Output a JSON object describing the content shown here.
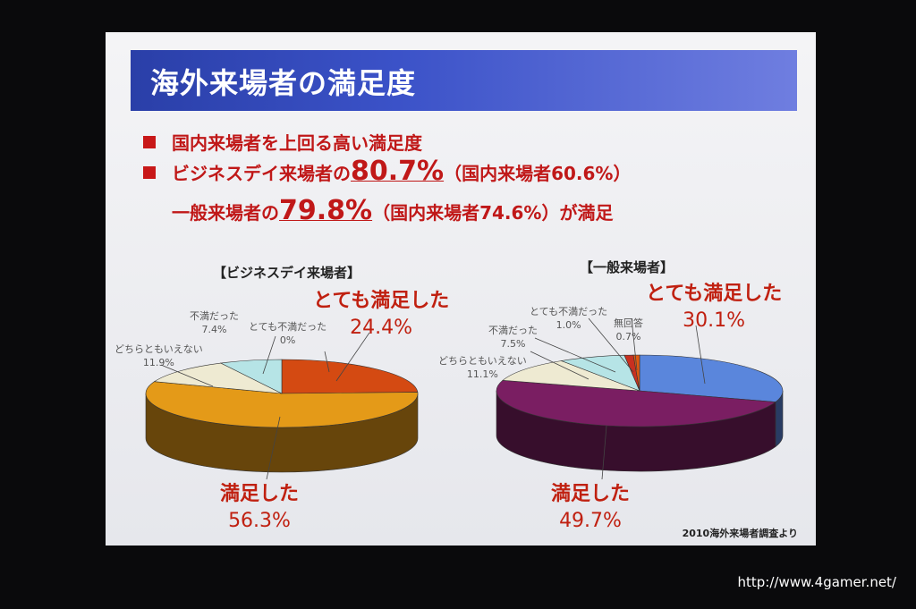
{
  "slide": {
    "title": "海外来場者の満足度",
    "bullets": [
      {
        "text": "国内来場者を上回る高い満足度"
      },
      {
        "pre": "ビジネスデイ来場者の",
        "highlight": "80.7%",
        "post": "（国内来場者60.6%）"
      },
      {
        "pre": "一般来場者の",
        "highlight": "79.8%",
        "post": "（国内来場者74.6%）が満足"
      }
    ],
    "source": "2010海外来場者調査より"
  },
  "watermark": "http://www.4gamer.net/",
  "chart_data": [
    {
      "type": "pie",
      "title": "【ビジネスデイ来場者】",
      "start": "12 o'clock",
      "direction": "clockwise",
      "style": "3d",
      "slices": [
        {
          "label": "とても満足した",
          "value": 24.4,
          "display": "24.4%",
          "color": "#d44a12"
        },
        {
          "label": "満足した",
          "value": 56.3,
          "display": "56.3%",
          "color": "#e49a18"
        },
        {
          "label": "どちらともいえない",
          "value": 11.9,
          "display": "11.9%",
          "color": "#eeead2"
        },
        {
          "label": "不満だった",
          "value": 7.4,
          "display": "7.4%",
          "color": "#b6e4e6"
        },
        {
          "label": "とても不満だった",
          "value": 0,
          "display": "0%",
          "color": "#c03020"
        }
      ]
    },
    {
      "type": "pie",
      "title": "【一般来場者】",
      "start": "12 o'clock",
      "direction": "clockwise",
      "style": "3d",
      "slices": [
        {
          "label": "とても満足した",
          "value": 30.1,
          "display": "30.1%",
          "color": "#5a86dc"
        },
        {
          "label": "満足した",
          "value": 49.7,
          "display": "49.7%",
          "color": "#7a1e62"
        },
        {
          "label": "どちらともいえない",
          "value": 11.1,
          "display": "11.1%",
          "color": "#eeead2"
        },
        {
          "label": "不満だった",
          "value": 7.5,
          "display": "7.5%",
          "color": "#b6e4e6"
        },
        {
          "label": "とても不満だった",
          "value": 1.0,
          "display": "1.0%",
          "color": "#c83020"
        },
        {
          "label": "無回答",
          "value": 0.7,
          "display": "0.7%",
          "color": "#e05a10"
        }
      ]
    }
  ]
}
